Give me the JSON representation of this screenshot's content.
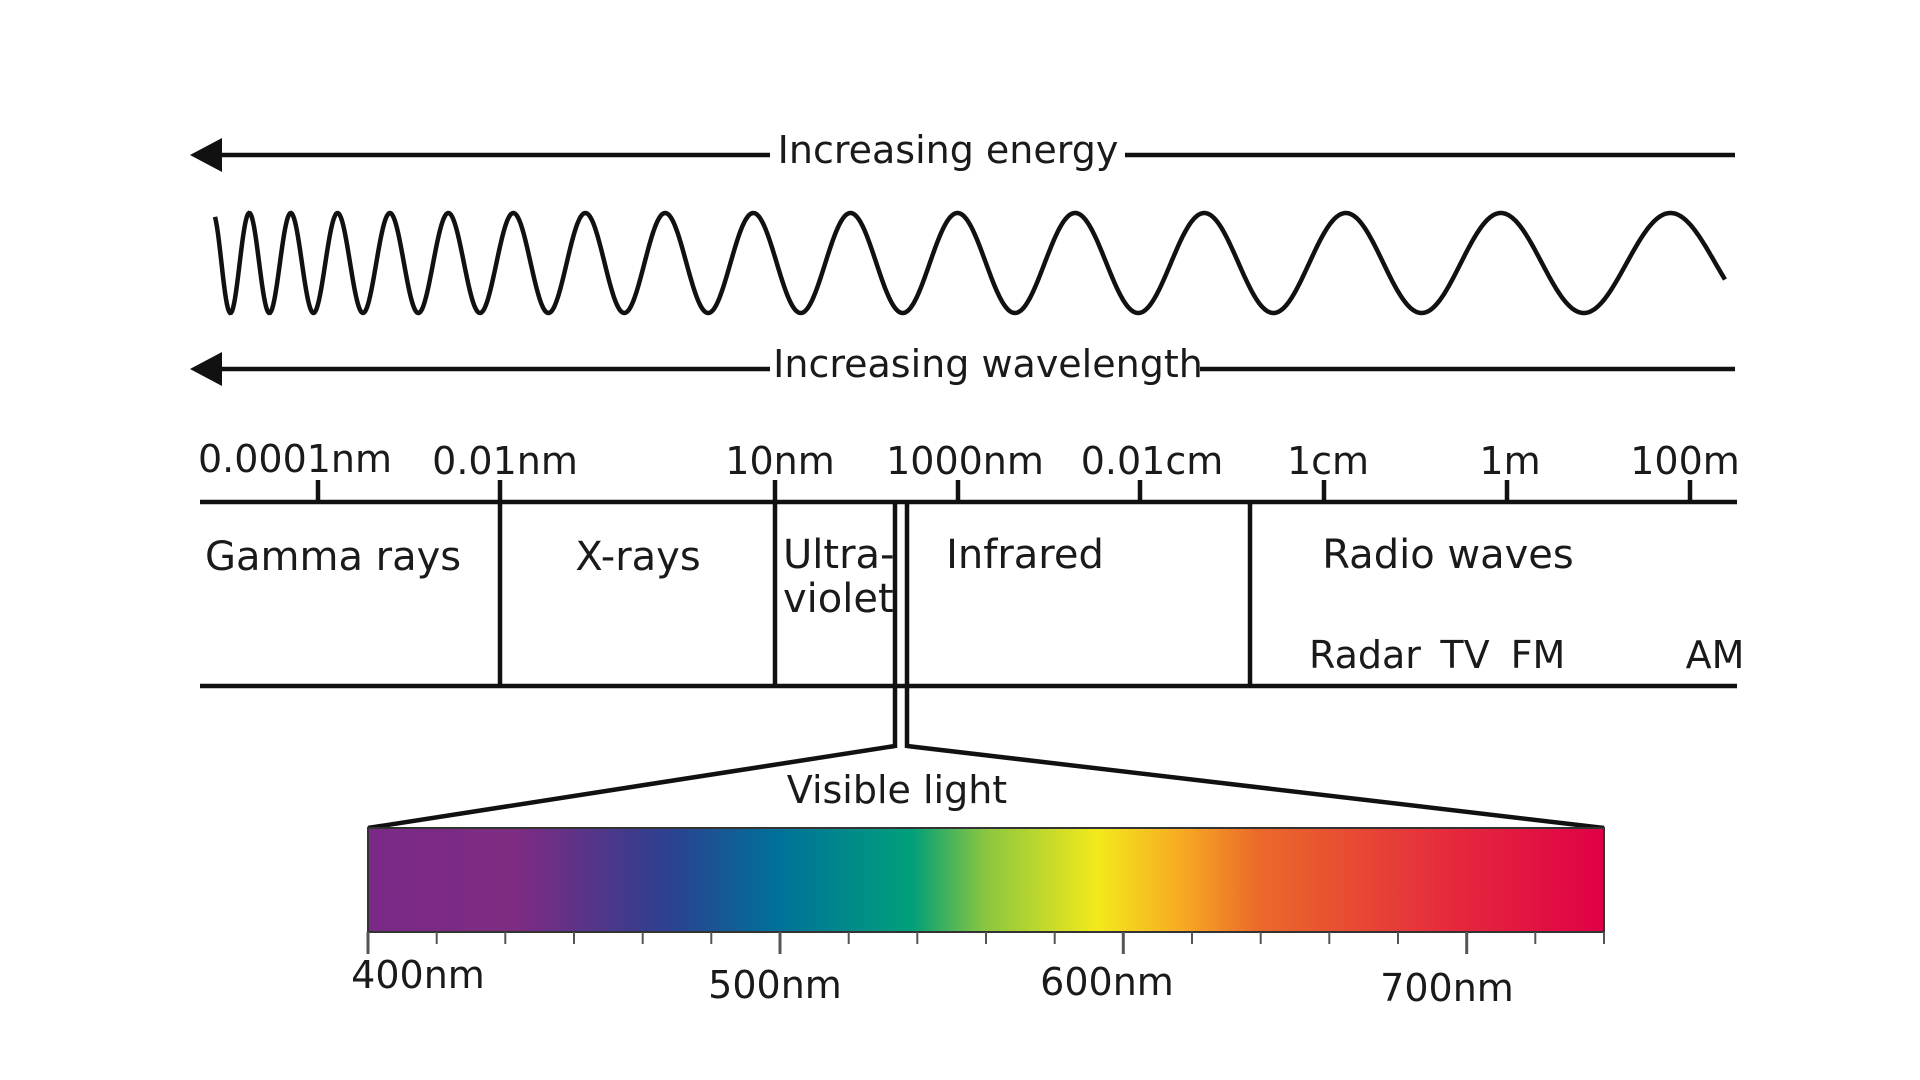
{
  "energy_label": "Increasing energy",
  "wavelength_label": "Increasing wavelength",
  "scale_ticks": [
    {
      "label": "0.0001nm"
    },
    {
      "label": "0.01nm"
    },
    {
      "label": "10nm"
    },
    {
      "label": "1000nm"
    },
    {
      "label": "0.01cm"
    },
    {
      "label": "1cm"
    },
    {
      "label": "1m"
    },
    {
      "label": "100m"
    }
  ],
  "bands": {
    "gamma": "Gamma rays",
    "xray": "X-rays",
    "uv_line1": "Ultra-",
    "uv_line2": "violet",
    "infrared": "Infrared",
    "radio": "Radio waves"
  },
  "radio_sub": {
    "radar": "Radar",
    "tv": "TV",
    "fm": "FM",
    "am": "AM"
  },
  "visible_label": "Visible light",
  "visible_ticks": [
    "400nm",
    "500nm",
    "600nm",
    "700nm"
  ],
  "spectrum_colors": [
    "#7a2a86",
    "#7e2b82",
    "#2e3f8f",
    "#00709a",
    "#00a07a",
    "#8cc63f",
    "#f2ea1b",
    "#f7a823",
    "#ea6a2a",
    "#e5283d",
    "#e00045"
  ],
  "colors": {
    "ink": "#111111",
    "background": "#ffffff"
  }
}
